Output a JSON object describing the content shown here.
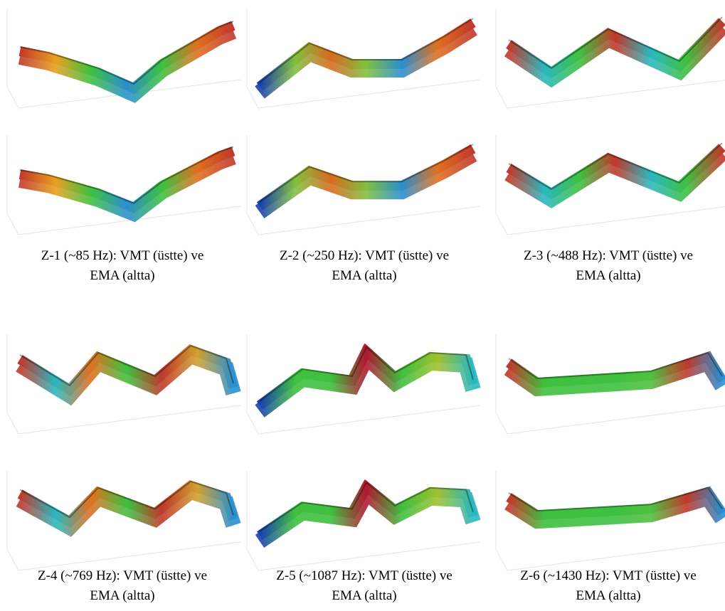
{
  "panels": [
    {
      "caption_line1": "Z-1 (~85 Hz): VMT (üstte) ve",
      "caption_line2": "EMA (altta)"
    },
    {
      "caption_line1": "Z-2 (~250 Hz): VMT (üstte) ve",
      "caption_line2": "EMA (altta)"
    },
    {
      "caption_line1": "Z-3 (~488 Hz): VMT (üstte) ve",
      "caption_line2": "EMA (altta)"
    },
    {
      "caption_line1": "Z-4 (~769 Hz): VMT (üstte) ve",
      "caption_line2": "EMA (altta)"
    },
    {
      "caption_line1": "Z-5 (~1087 Hz): VMT (üstte) ve",
      "caption_line2": "EMA (altta)"
    },
    {
      "caption_line1": "Z-6 (~1430 Hz): VMT (üstte) ve",
      "caption_line2": "EMA (altta)"
    }
  ]
}
